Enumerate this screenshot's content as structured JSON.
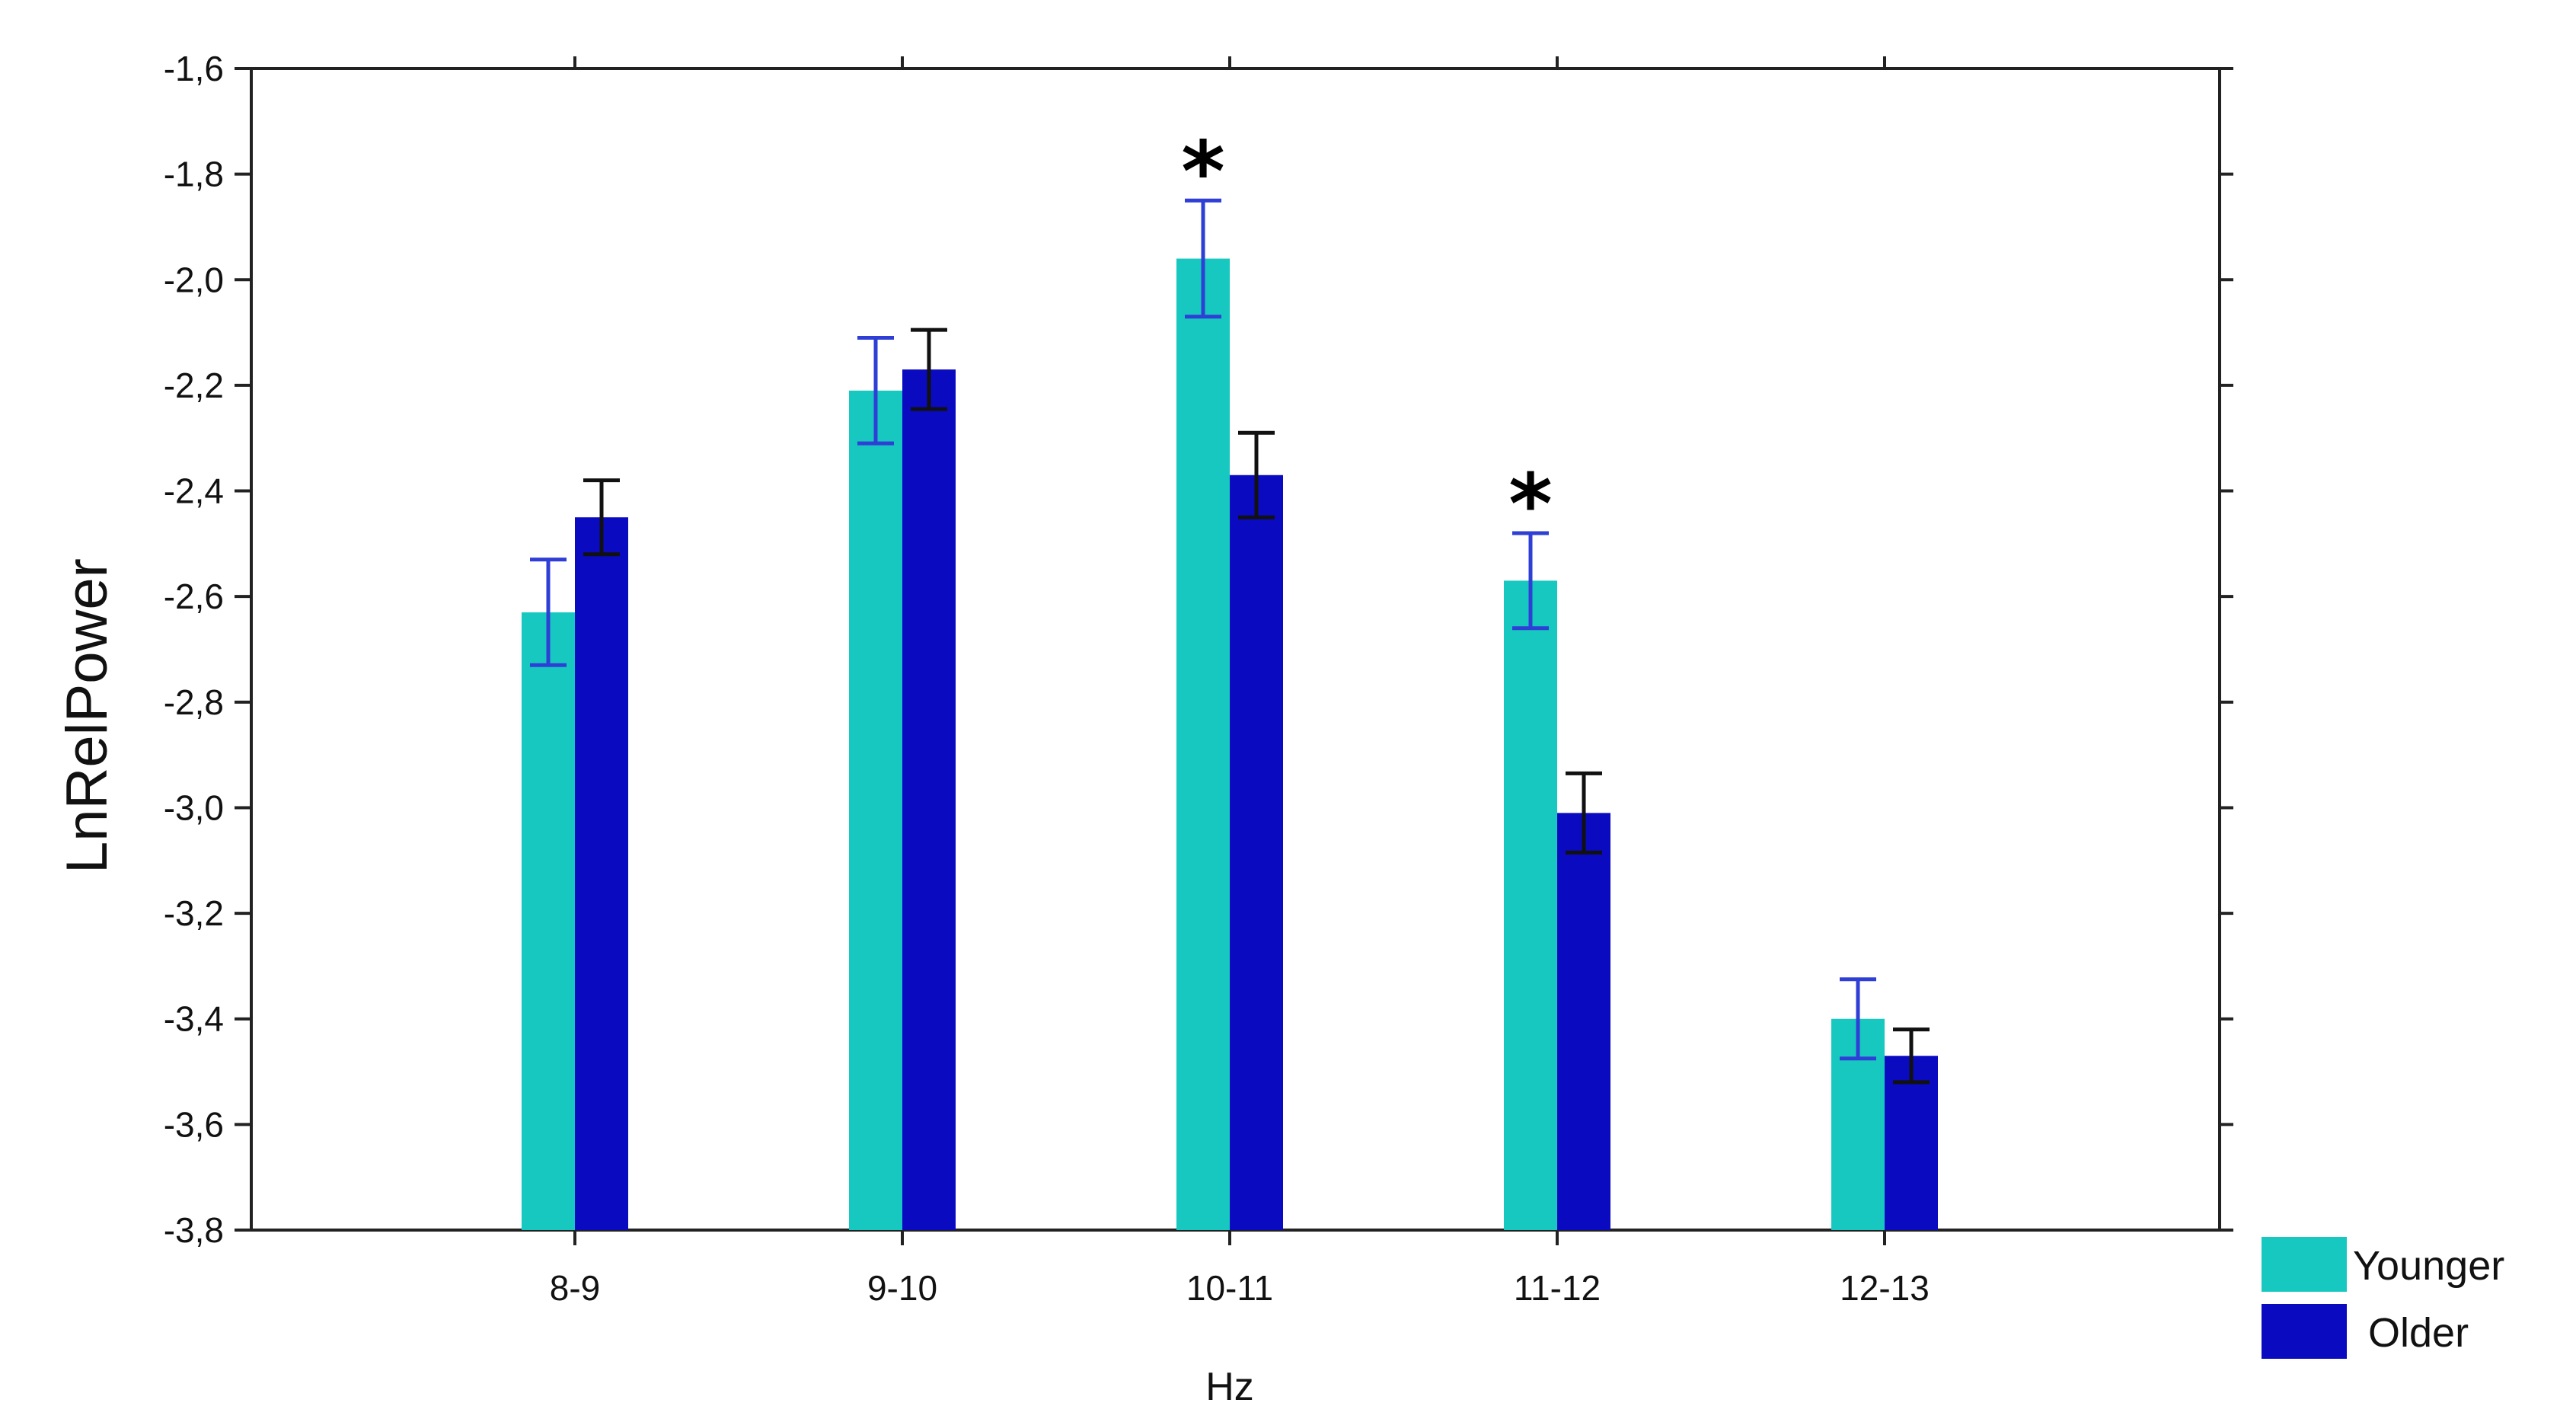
{
  "chart_data": {
    "type": "bar",
    "title": "",
    "xlabel": "Hz",
    "ylabel": "LnRelPower",
    "categories": [
      "8-9",
      "9-10",
      "10-11",
      "11-12",
      "12-13"
    ],
    "ylim": [
      -3.8,
      -1.6
    ],
    "yticks": [
      -1.6,
      -1.8,
      -2.0,
      -2.2,
      -2.4,
      -2.6,
      -2.8,
      -3.0,
      -3.2,
      -3.4,
      -3.6,
      -3.8
    ],
    "ytick_labels": [
      "-1,6",
      "-1,8",
      "-2,0",
      "-2,2",
      "-2,4",
      "-2,6",
      "-2,8",
      "-3,0",
      "-3,2",
      "-3,4",
      "-3,6",
      "-3,8"
    ],
    "grid": false,
    "legend_position": "bottom-right",
    "series": [
      {
        "name": "Younger",
        "color": "#17c8c0",
        "error_color": "#2f3fd6",
        "values": [
          -2.63,
          -2.21,
          -1.96,
          -2.57,
          -3.4
        ],
        "error": [
          0.1,
          0.1,
          0.11,
          0.09,
          0.075
        ]
      },
      {
        "name": "Older",
        "color": "#0a0ac0",
        "error_color": "#111111",
        "values": [
          -2.45,
          -2.17,
          -2.37,
          -3.01,
          -3.47
        ],
        "error": [
          0.07,
          0.075,
          0.08,
          0.075,
          0.05
        ]
      }
    ],
    "annotations": [
      {
        "category": "10-11",
        "text": "*"
      },
      {
        "category": "11-12",
        "text": "*"
      }
    ]
  }
}
